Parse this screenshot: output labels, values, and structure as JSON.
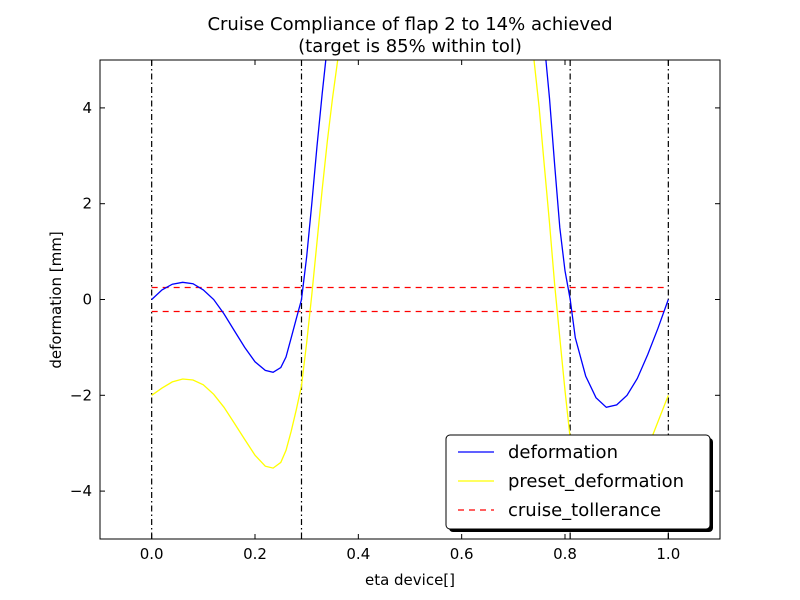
{
  "chart_data": {
    "type": "line",
    "title_line1": "Cruise Compliance of flap 2 to 14% achieved",
    "title_line2": "(target is 85% within tol)",
    "xlabel": "eta device[]",
    "ylabel": "deformation [mm]",
    "xlim": [
      -0.1,
      1.1
    ],
    "ylim": [
      -5,
      5
    ],
    "xticks": [
      0.0,
      0.2,
      0.4,
      0.6,
      0.8,
      1.0
    ],
    "xtick_labels": [
      "0.0",
      "0.2",
      "0.4",
      "0.6",
      "0.8",
      "1.0"
    ],
    "yticks": [
      -4,
      -2,
      0,
      2,
      4
    ],
    "ytick_labels": [
      "−4",
      "−2",
      "0",
      "2",
      "4"
    ],
    "grid": false,
    "legend_position": "lower-right",
    "vertical_markers": [
      0.0,
      0.29,
      0.81,
      1.0
    ],
    "series": [
      {
        "name": "deformation",
        "color": "#0000ff",
        "style": "solid",
        "points": [
          [
            0.0,
            0.0
          ],
          [
            0.02,
            0.2
          ],
          [
            0.04,
            0.32
          ],
          [
            0.06,
            0.36
          ],
          [
            0.08,
            0.33
          ],
          [
            0.1,
            0.2
          ],
          [
            0.12,
            0.0
          ],
          [
            0.14,
            -0.3
          ],
          [
            0.16,
            -0.65
          ],
          [
            0.18,
            -1.0
          ],
          [
            0.2,
            -1.3
          ],
          [
            0.22,
            -1.48
          ],
          [
            0.235,
            -1.52
          ],
          [
            0.25,
            -1.42
          ],
          [
            0.26,
            -1.2
          ],
          [
            0.27,
            -0.8
          ],
          [
            0.28,
            -0.4
          ],
          [
            0.29,
            0.0
          ],
          [
            0.3,
            0.9
          ],
          [
            0.31,
            2.0
          ],
          [
            0.32,
            3.2
          ],
          [
            0.33,
            4.3
          ],
          [
            0.337,
            5.0
          ]
        ],
        "points_right": [
          [
            0.763,
            5.0
          ],
          [
            0.77,
            4.2
          ],
          [
            0.78,
            2.8
          ],
          [
            0.79,
            1.5
          ],
          [
            0.8,
            0.6
          ],
          [
            0.81,
            0.0
          ],
          [
            0.82,
            -0.8
          ],
          [
            0.84,
            -1.6
          ],
          [
            0.86,
            -2.05
          ],
          [
            0.88,
            -2.25
          ],
          [
            0.9,
            -2.2
          ],
          [
            0.92,
            -2.0
          ],
          [
            0.94,
            -1.65
          ],
          [
            0.96,
            -1.15
          ],
          [
            0.98,
            -0.6
          ],
          [
            1.0,
            0.0
          ]
        ]
      },
      {
        "name": "preset_deformation",
        "color": "#ffff00",
        "style": "solid",
        "points": [
          [
            0.0,
            -2.0
          ],
          [
            0.02,
            -1.85
          ],
          [
            0.04,
            -1.72
          ],
          [
            0.06,
            -1.66
          ],
          [
            0.08,
            -1.68
          ],
          [
            0.1,
            -1.78
          ],
          [
            0.12,
            -1.98
          ],
          [
            0.14,
            -2.25
          ],
          [
            0.16,
            -2.58
          ],
          [
            0.18,
            -2.92
          ],
          [
            0.2,
            -3.25
          ],
          [
            0.22,
            -3.48
          ],
          [
            0.235,
            -3.52
          ],
          [
            0.25,
            -3.4
          ],
          [
            0.26,
            -3.15
          ],
          [
            0.27,
            -2.75
          ],
          [
            0.28,
            -2.3
          ],
          [
            0.29,
            -1.8
          ],
          [
            0.3,
            -0.9
          ],
          [
            0.31,
            0.1
          ],
          [
            0.32,
            1.2
          ],
          [
            0.33,
            2.3
          ],
          [
            0.34,
            3.3
          ],
          [
            0.35,
            4.2
          ],
          [
            0.36,
            5.0
          ]
        ],
        "points_right": [
          [
            0.74,
            5.0
          ],
          [
            0.75,
            4.0
          ],
          [
            0.76,
            2.8
          ],
          [
            0.77,
            1.6
          ],
          [
            0.78,
            0.3
          ],
          [
            0.79,
            -0.8
          ],
          [
            0.8,
            -1.9
          ],
          [
            0.81,
            -2.9
          ],
          [
            0.82,
            -3.6
          ],
          [
            0.83,
            -4.2
          ],
          [
            0.84,
            -4.6
          ]
        ],
        "points_right_tail": [
          [
            0.96,
            -3.1
          ],
          [
            0.98,
            -2.55
          ],
          [
            1.0,
            -2.0
          ]
        ]
      },
      {
        "name": "cruise_tollerance",
        "color": "#ff0000",
        "style": "dashed",
        "levels": [
          0.25,
          -0.25
        ],
        "x_range": [
          0.0,
          1.0
        ]
      }
    ]
  }
}
